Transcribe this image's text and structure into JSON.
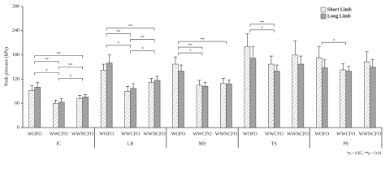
{
  "chart_data": {
    "type": "bar",
    "y_label": "Peak pressure (kPa)",
    "groups": [
      "IC",
      "LR",
      "MS",
      "TS",
      "PS"
    ],
    "categories": [
      "WOFO",
      "WWCFO",
      "WWNCFO"
    ],
    "ylim": [
      0,
      300
    ],
    "yticks": [
      0,
      60,
      120,
      180,
      240,
      300
    ],
    "series": [
      {
        "name": "Short Limb",
        "color": "#9a9a9a",
        "values": [
          [
            92,
            60,
            72
          ],
          [
            142,
            90,
            112
          ],
          [
            157,
            105,
            110
          ],
          [
            200,
            157,
            180
          ],
          [
            173,
            143,
            163
          ]
        ],
        "errors": [
          [
            12,
            8,
            8
          ],
          [
            15,
            12,
            10
          ],
          [
            18,
            12,
            12
          ],
          [
            32,
            20,
            35
          ],
          [
            28,
            15,
            25
          ]
        ]
      },
      {
        "name": "Long Limb",
        "color": "#505050",
        "values": [
          [
            100,
            63,
            76
          ],
          [
            160,
            97,
            117
          ],
          [
            140,
            102,
            108
          ],
          [
            172,
            140,
            157
          ],
          [
            148,
            140,
            150
          ]
        ],
        "errors": [
          [
            12,
            8,
            6
          ],
          [
            20,
            12,
            10
          ],
          [
            15,
            10,
            10
          ],
          [
            28,
            15,
            20
          ],
          [
            20,
            12,
            18
          ]
        ]
      }
    ],
    "comparisons": [
      [
        {
          "pair": [
            "WOFO",
            "WWNCFO"
          ],
          "label": "**"
        },
        {
          "pair": [
            "WOFO",
            "WWCFO"
          ],
          "label": "**"
        },
        {
          "pair": [
            "WWCFO",
            "WWNCFO"
          ],
          "label": "**"
        },
        {
          "pair": [
            "WOFO",
            "WWCFO"
          ],
          "label": "*"
        },
        {
          "pair": [
            "WWCFO",
            "WWNCFO"
          ],
          "label": "*"
        }
      ],
      [
        {
          "pair": [
            "WOFO",
            "WWNCFO"
          ],
          "label": "**"
        },
        {
          "pair": [
            "WOFO",
            "WWCFO"
          ],
          "label": "**"
        },
        {
          "pair": [
            "WWCFO",
            "WWNCFO"
          ],
          "label": "**"
        },
        {
          "pair": [
            "WOFO",
            "WWCFO"
          ],
          "label": "*"
        },
        {
          "pair": [
            "WWCFO",
            "WWNCFO"
          ],
          "label": "*"
        }
      ],
      [
        {
          "pair": [
            "WOFO",
            "WWNCFO"
          ],
          "label": "**"
        },
        {
          "pair": [
            "WOFO",
            "WWCFO"
          ],
          "label": "**"
        },
        {
          "pair": [
            "WOFO",
            "WWCFO"
          ],
          "label": "*"
        }
      ],
      [
        {
          "pair": [
            "WOFO",
            "WWCFO"
          ],
          "label": "**"
        },
        {
          "pair": [
            "WOFO",
            "WWCFO"
          ],
          "label": "*"
        }
      ],
      [
        {
          "pair": [
            "WOFO",
            "WWCFO"
          ],
          "label": "*"
        }
      ]
    ],
    "footnote": "*p < 0.05, **p < 0.01",
    "legend": "upper right"
  }
}
